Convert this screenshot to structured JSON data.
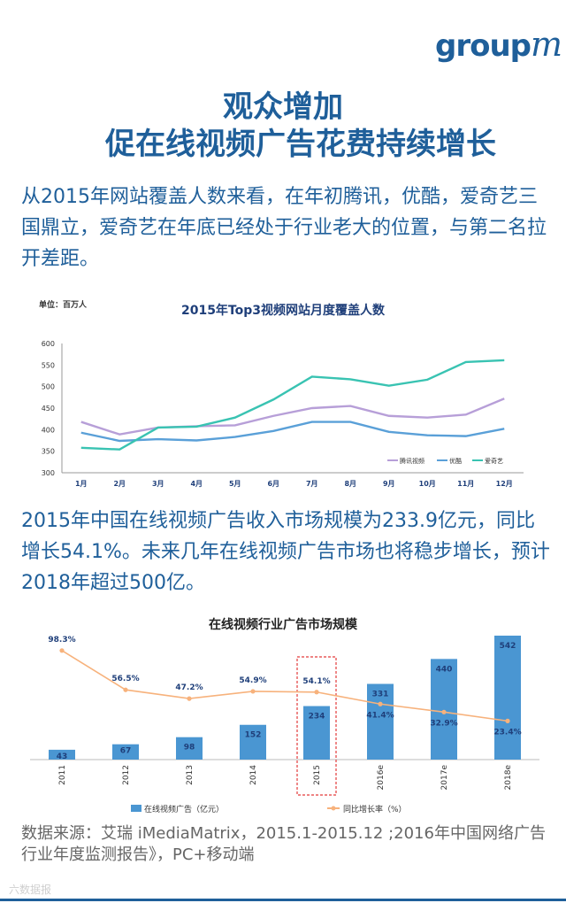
{
  "logo": {
    "text": "group",
    "mark": "m"
  },
  "title": {
    "line1": "观众增加",
    "line2": "促在线视频广告花费持续增长"
  },
  "paragraph1": "从2015年网站覆盖人数来看，在年初腾讯，优酷，爱奇艺三国鼎立，爱奇艺在年底已经处于行业老大的位置，与第二名拉开差距。",
  "paragraph2": "2015年中国在线视频广告收入市场规模为233.9亿元，同比增长54.1%。未来几年在线视频广告市场也将稳步增长，预计2018年超过500亿。",
  "source": "数据来源：艾瑞 iMediaMatrix，2015.1-2015.12 ;2016年中国网络广告行业年度监测报告》，PC+移动端",
  "watermark": "六数据报",
  "colors": {
    "brand": "#1f5f9a",
    "tencent": "#b79fd8",
    "youku": "#5aa0d8",
    "iqiyi": "#39c3b2",
    "bar": "#4a96d2",
    "growth": "#f7b27c",
    "highlight": "#e33b3b"
  },
  "chart_data": [
    {
      "type": "line",
      "title": "2015年Top3视频网站月度覆盖人数",
      "unit_label": "单位：百万人",
      "categories": [
        "1月",
        "2月",
        "3月",
        "4月",
        "5月",
        "6月",
        "7月",
        "8月",
        "9月",
        "10月",
        "11月",
        "12月"
      ],
      "ylim": [
        300,
        600
      ],
      "yticks": [
        300,
        350,
        400,
        450,
        500,
        550,
        600
      ],
      "series": [
        {
          "name": "腾讯视频",
          "color": "#b79fd8",
          "values": [
            418,
            389,
            405,
            408,
            410,
            432,
            450,
            455,
            432,
            428,
            435,
            472
          ]
        },
        {
          "name": "优酷",
          "color": "#5aa0d8",
          "values": [
            393,
            374,
            378,
            375,
            383,
            397,
            418,
            418,
            395,
            387,
            385,
            402
          ]
        },
        {
          "name": "爱奇艺",
          "color": "#39c3b2",
          "values": [
            358,
            354,
            405,
            407,
            428,
            470,
            523,
            517,
            502,
            516,
            557,
            561
          ]
        }
      ],
      "legend": "bottom-right"
    },
    {
      "type": "bar",
      "title": "在线视频行业广告市场规模",
      "categories": [
        "2011",
        "2012",
        "2013",
        "2014",
        "2015",
        "2016e",
        "2017e",
        "2018e"
      ],
      "series": [
        {
          "name": "在线视频广告（亿元）",
          "values": [
            43,
            67,
            98,
            152,
            234,
            331,
            440,
            542
          ]
        },
        {
          "name": "同比增长率（%）",
          "type": "line",
          "values": [
            98.3,
            56.5,
            47.2,
            54.9,
            54.1,
            41.4,
            32.9,
            23.4
          ],
          "labels": [
            "98.3%",
            "56.5%",
            "47.2%",
            "54.9%",
            "54.1%",
            "41.4%",
            "32.9%",
            "23.4%"
          ]
        }
      ],
      "highlight_category": "2015",
      "legend": "bottom"
    }
  ]
}
